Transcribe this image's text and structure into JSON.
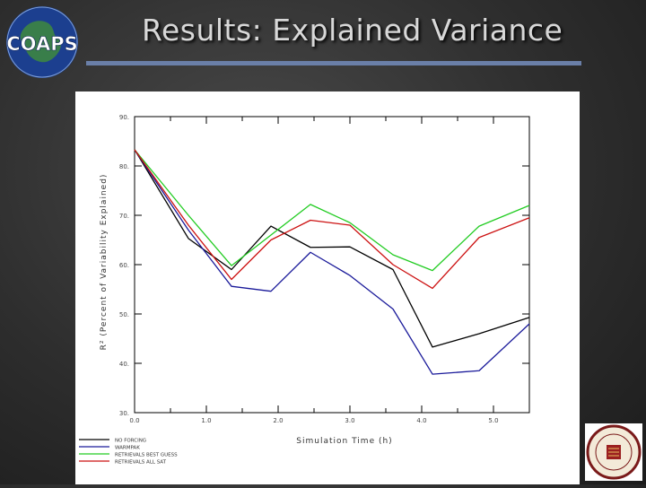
{
  "slide": {
    "title": "Results:  Explained Variance",
    "logo_text": "COAPS"
  },
  "colors": {
    "title_rule": "#6a7fa8",
    "series_no_forcing": "#000000",
    "series_warmpak": "#1a1a9a",
    "series_retrievals_best_guess": "#22cc22",
    "series_retrievals_all_sat": "#cc1111"
  },
  "chart_data": {
    "type": "line",
    "xlabel": "Simulation Time (h)",
    "ylabel": "R² (Percent of Variability Explained)",
    "xlim": [
      0,
      5.5
    ],
    "ylim": [
      30,
      90
    ],
    "xticks": [
      "0.0",
      "1.0",
      "2.0",
      "3.0",
      "4.0",
      "5.0"
    ],
    "yticks": [
      "30.",
      "40.",
      "50.",
      "60.",
      "70.",
      "80.",
      "90."
    ],
    "x": [
      0,
      0.75,
      1.35,
      1.9,
      2.45,
      3.0,
      3.6,
      4.15,
      4.8,
      5.5
    ],
    "series": [
      {
        "name": "NO FORCING",
        "color": "#000000",
        "values": [
          83.3,
          65.3,
          59.0,
          67.8,
          63.5,
          63.6,
          59.0,
          43.3,
          46.0,
          49.3
        ]
      },
      {
        "name": "WARMPAK",
        "color": "#1a1a9a",
        "values": [
          83.3,
          67.0,
          55.6,
          54.6,
          62.5,
          57.8,
          51.0,
          37.8,
          38.5,
          48.0
        ]
      },
      {
        "name": "RETRIEVALS BEST GUESS",
        "color": "#22cc22",
        "values": [
          83.3,
          70.0,
          59.8,
          66.0,
          72.2,
          68.5,
          62.0,
          58.8,
          67.8,
          72.0
        ]
      },
      {
        "name": "RETRIEVALS ALL SAT",
        "color": "#cc1111",
        "values": [
          83.3,
          68.0,
          57.0,
          65.0,
          69.0,
          68.0,
          60.0,
          55.2,
          65.5,
          69.5
        ]
      }
    ]
  }
}
